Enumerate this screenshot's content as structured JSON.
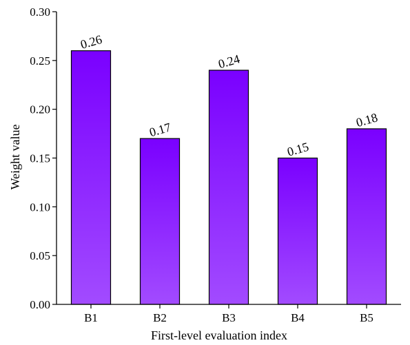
{
  "chart_data": {
    "type": "bar",
    "categories": [
      "B1",
      "B2",
      "B3",
      "B4",
      "B5"
    ],
    "values": [
      0.26,
      0.17,
      0.24,
      0.15,
      0.18
    ],
    "data_labels": [
      "0.26",
      "0.17",
      "0.24",
      "0.15",
      "0.18"
    ],
    "title": "",
    "xlabel": "First-level evaluation index",
    "ylabel": "Weight value",
    "ylim": [
      0,
      0.3
    ],
    "yticks": [
      0.0,
      0.05,
      0.1,
      0.15,
      0.2,
      0.25,
      0.3
    ],
    "ytick_labels": [
      "0.00",
      "0.05",
      "0.10",
      "0.15",
      "0.20",
      "0.25",
      "0.30"
    ],
    "grid": false,
    "legend": "none",
    "colors": {
      "bar_top": "#7A00FF",
      "bar_bottom": "#A24BFF",
      "outline": "#000000"
    }
  }
}
